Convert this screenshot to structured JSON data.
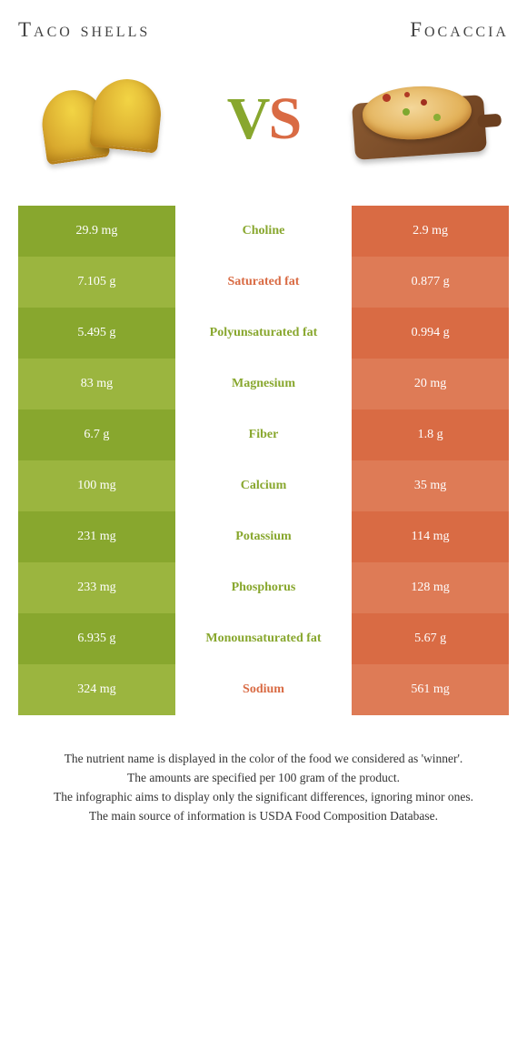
{
  "titles": {
    "left": "Taco shells",
    "right": "Focaccia"
  },
  "vs": {
    "v": "V",
    "s": "S"
  },
  "colors": {
    "green_dark": "#88a72e",
    "green_light": "#9bb53f",
    "orange_dark": "#d96b44",
    "orange_light": "#de7b56",
    "label_green": "#88a72e",
    "label_orange": "#d96b44",
    "white": "#ffffff",
    "text": "#333333"
  },
  "rows": [
    {
      "left": "29.9 mg",
      "label": "Choline",
      "right": "2.9 mg",
      "winner": "left"
    },
    {
      "left": "7.105 g",
      "label": "Saturated fat",
      "right": "0.877 g",
      "winner": "right"
    },
    {
      "left": "5.495 g",
      "label": "Polyunsaturated fat",
      "right": "0.994 g",
      "winner": "left"
    },
    {
      "left": "83 mg",
      "label": "Magnesium",
      "right": "20 mg",
      "winner": "left"
    },
    {
      "left": "6.7 g",
      "label": "Fiber",
      "right": "1.8 g",
      "winner": "left"
    },
    {
      "left": "100 mg",
      "label": "Calcium",
      "right": "35 mg",
      "winner": "left"
    },
    {
      "left": "231 mg",
      "label": "Potassium",
      "right": "114 mg",
      "winner": "left"
    },
    {
      "left": "233 mg",
      "label": "Phosphorus",
      "right": "128 mg",
      "winner": "left"
    },
    {
      "left": "6.935 g",
      "label": "Monounsaturated fat",
      "right": "5.67 g",
      "winner": "left"
    },
    {
      "left": "324 mg",
      "label": "Sodium",
      "right": "561 mg",
      "winner": "right"
    }
  ],
  "footer": [
    "The nutrient name is displayed in the color of the food we considered as 'winner'.",
    "The amounts are specified per 100 gram of the product.",
    "The infographic aims to display only the significant differences, ignoring minor ones.",
    "The main source of information is USDA Food Composition Database."
  ]
}
